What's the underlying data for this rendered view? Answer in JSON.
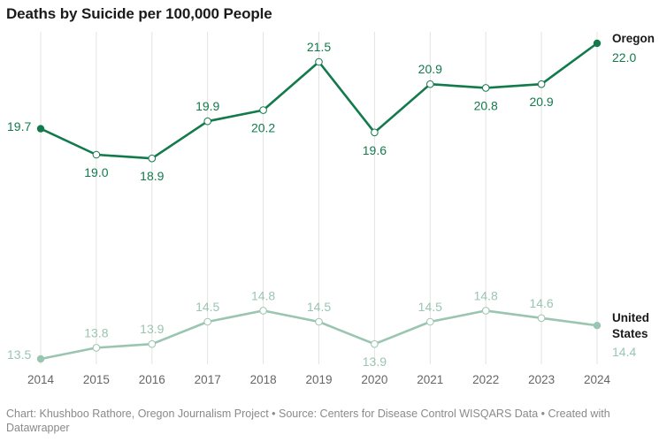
{
  "header": {
    "title": "Deaths by Suicide per 100,000 People"
  },
  "footer": {
    "text": "Chart: Khushboo Rathore, Oregon Journalism Project • Source: Centers for Disease Control WISQARS Data • Created with Datawrapper"
  },
  "colors": {
    "oregon": "#137a4c",
    "us": "#9ac5b1",
    "grid": "#e3e3e3"
  },
  "chart_data": {
    "type": "line",
    "title": "Deaths by Suicide per 100,000 People",
    "x": [
      "2014",
      "2015",
      "2016",
      "2017",
      "2018",
      "2019",
      "2020",
      "2021",
      "2022",
      "2023",
      "2024"
    ],
    "grid": true,
    "legend": "direct labels at right end of lines",
    "series": [
      {
        "name": "Oregon",
        "label_lines": [
          "Oregon"
        ],
        "values": [
          19.7,
          19.0,
          18.9,
          19.9,
          20.2,
          21.5,
          19.6,
          20.9,
          20.8,
          20.9,
          22.0
        ],
        "labels": [
          "19.7",
          "19.0",
          "18.9",
          "19.9",
          "20.2",
          "21.5",
          "19.6",
          "20.9",
          "20.8",
          "20.9",
          "22.0"
        ]
      },
      {
        "name": "United States",
        "label_lines": [
          "United",
          "States"
        ],
        "values": [
          13.5,
          13.8,
          13.9,
          14.5,
          14.8,
          14.5,
          13.9,
          14.5,
          14.8,
          14.6,
          14.4
        ],
        "labels": [
          "13.5",
          "13.8",
          "13.9",
          "14.5",
          "14.8",
          "14.5",
          "13.9",
          "14.5",
          "14.8",
          "14.6",
          "14.4"
        ]
      }
    ]
  }
}
